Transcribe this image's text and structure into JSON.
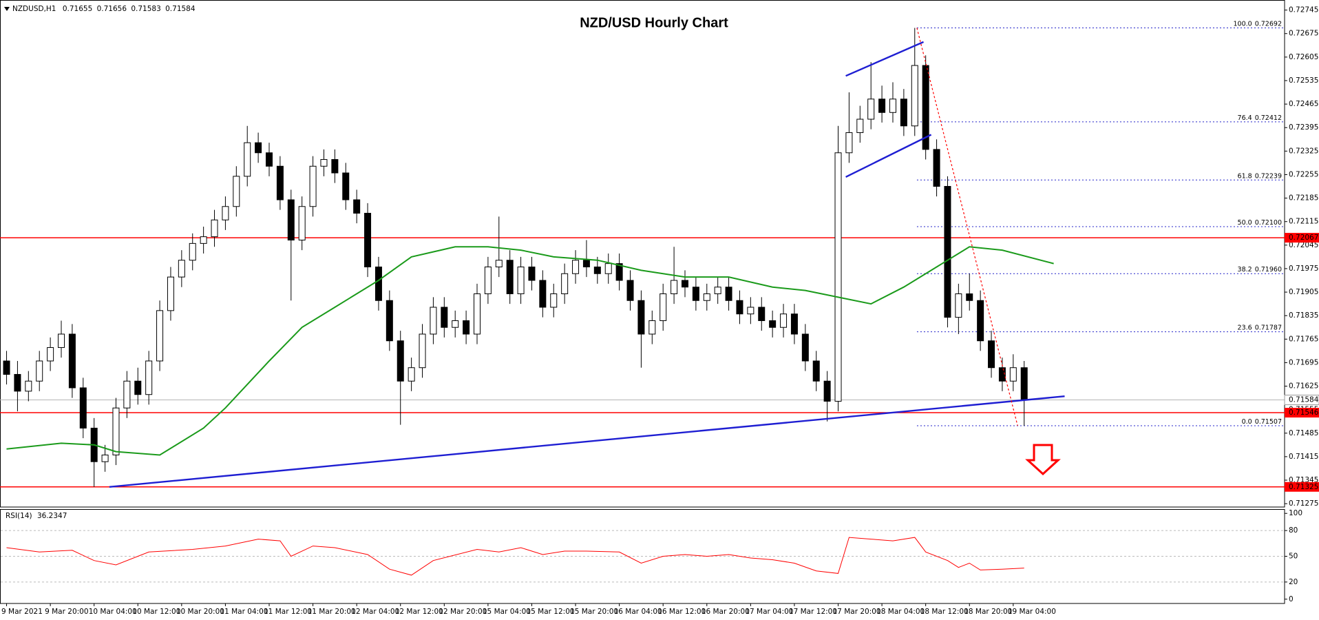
{
  "chart_data": {
    "type": "candlestick",
    "header": {
      "symbol": "NZDUSD,H1",
      "values": [
        0.71655,
        0.71656,
        0.71583,
        0.71584
      ]
    },
    "title": "NZD/USD Hourly Chart",
    "xlim": [
      -0.6,
      116.8
    ],
    "ylim": [
      0.71265,
      0.72775
    ],
    "yticks": [
      0.72745,
      0.72675,
      0.72605,
      0.72535,
      0.72465,
      0.72395,
      0.72325,
      0.72255,
      0.72185,
      0.72115,
      0.72045,
      0.71975,
      0.71905,
      0.71835,
      0.71765,
      0.71695,
      0.71625,
      0.71555,
      0.71485,
      0.71415,
      0.71345,
      0.71275
    ],
    "xticks": [
      {
        "value": 0,
        "label": "9 Mar 2021"
      },
      {
        "value": 4,
        "label": "9 Mar 20:00"
      },
      {
        "value": 8,
        "label": "10 Mar 04:00"
      },
      {
        "value": 12,
        "label": "10 Mar 12:00"
      },
      {
        "value": 16,
        "label": "10 Mar 20:00"
      },
      {
        "value": 20,
        "label": "11 Mar 04:00"
      },
      {
        "value": 24,
        "label": "11 Mar 12:00"
      },
      {
        "value": 28,
        "label": "11 Mar 20:00"
      },
      {
        "value": 32,
        "label": "12 Mar 04:00"
      },
      {
        "value": 36,
        "label": "12 Mar 12:00"
      },
      {
        "value": 40,
        "label": "12 Mar 20:00"
      },
      {
        "value": 44,
        "label": "15 Mar 04:00"
      },
      {
        "value": 48,
        "label": "15 Mar 12:00"
      },
      {
        "value": 52,
        "label": "15 Mar 20:00"
      },
      {
        "value": 56,
        "label": "16 Mar 04:00"
      },
      {
        "value": 60,
        "label": "16 Mar 12:00"
      },
      {
        "value": 64,
        "label": "16 Mar 20:00"
      },
      {
        "value": 68,
        "label": "17 Mar 04:00"
      },
      {
        "value": 72,
        "label": "17 Mar 12:00"
      },
      {
        "value": 76,
        "label": "17 Mar 20:00"
      },
      {
        "value": 80,
        "label": "18 Mar 04:00"
      },
      {
        "value": 84,
        "label": "18 Mar 12:00"
      },
      {
        "value": 88,
        "label": "18 Mar 20:00"
      },
      {
        "value": 92,
        "label": "19 Mar 04:00"
      }
    ],
    "colors": {
      "up": "#ffffff",
      "down": "#000000",
      "wick": "#000000"
    },
    "candles": {
      "open": [
        0.717,
        0.7166,
        0.7161,
        0.7164,
        0.717,
        0.7174,
        0.7178,
        0.7162,
        0.715,
        0.714,
        0.7142,
        0.7156,
        0.7164,
        0.716,
        0.717,
        0.7185,
        0.7195,
        0.72,
        0.7205,
        0.7207,
        0.7212,
        0.7216,
        0.7225,
        0.7235,
        0.7232,
        0.7228,
        0.7218,
        0.7206,
        0.7216,
        0.7228,
        0.723,
        0.7226,
        0.7218,
        0.7214,
        0.7198,
        0.7188,
        0.7176,
        0.7164,
        0.7168,
        0.7178,
        0.7186,
        0.718,
        0.7182,
        0.7178,
        0.719,
        0.7198,
        0.72,
        0.719,
        0.7198,
        0.7194,
        0.7186,
        0.719,
        0.7196,
        0.72,
        0.7198,
        0.7196,
        0.7199,
        0.7194,
        0.7188,
        0.7178,
        0.7182,
        0.719,
        0.7194,
        0.7192,
        0.7188,
        0.719,
        0.7192,
        0.7188,
        0.7184,
        0.7186,
        0.7182,
        0.718,
        0.7184,
        0.7178,
        0.717,
        0.7164,
        0.7158,
        0.7232,
        0.7238,
        0.7242,
        0.7248,
        0.7244,
        0.7248,
        0.724,
        0.7258,
        0.7233,
        0.7222,
        0.7183,
        0.719,
        0.7188,
        0.7176,
        0.7168,
        0.7164,
        0.7168
      ],
      "high": [
        0.7173,
        0.717,
        0.7167,
        0.7173,
        0.7177,
        0.7182,
        0.7181,
        0.7165,
        0.7153,
        0.7145,
        0.7159,
        0.7167,
        0.7168,
        0.7173,
        0.7188,
        0.7198,
        0.7203,
        0.7208,
        0.721,
        0.7215,
        0.7219,
        0.7228,
        0.724,
        0.7238,
        0.7235,
        0.7231,
        0.7221,
        0.7219,
        0.7231,
        0.7233,
        0.7233,
        0.7229,
        0.7221,
        0.7217,
        0.7201,
        0.7191,
        0.7179,
        0.7171,
        0.7181,
        0.7189,
        0.7189,
        0.7185,
        0.7185,
        0.7193,
        0.7201,
        0.7213,
        0.7203,
        0.7201,
        0.7201,
        0.7197,
        0.7193,
        0.7199,
        0.7203,
        0.7206,
        0.7201,
        0.7202,
        0.7202,
        0.7197,
        0.7191,
        0.7185,
        0.7193,
        0.7204,
        0.7197,
        0.7195,
        0.7193,
        0.7195,
        0.7195,
        0.7191,
        0.7189,
        0.7189,
        0.7185,
        0.7187,
        0.7187,
        0.7181,
        0.7173,
        0.7167,
        0.724,
        0.725,
        0.7246,
        0.7259,
        0.7252,
        0.7253,
        0.7251,
        0.72692,
        0.7261,
        0.7236,
        0.7225,
        0.7193,
        0.7196,
        0.7191,
        0.7179,
        0.7171,
        0.7172,
        0.717
      ],
      "low": [
        0.7163,
        0.7155,
        0.7158,
        0.7161,
        0.7167,
        0.7171,
        0.7159,
        0.7147,
        0.71325,
        0.7137,
        0.7139,
        0.7153,
        0.7157,
        0.7157,
        0.7167,
        0.7182,
        0.7192,
        0.7197,
        0.7202,
        0.7204,
        0.7209,
        0.7213,
        0.7222,
        0.7229,
        0.7225,
        0.7215,
        0.7188,
        0.7203,
        0.7213,
        0.7225,
        0.7223,
        0.7215,
        0.7211,
        0.7195,
        0.7185,
        0.7173,
        0.7151,
        0.7161,
        0.7165,
        0.7175,
        0.7177,
        0.7177,
        0.7175,
        0.7175,
        0.7187,
        0.7195,
        0.7187,
        0.7187,
        0.7191,
        0.7183,
        0.7183,
        0.7187,
        0.7193,
        0.7195,
        0.7193,
        0.7193,
        0.7191,
        0.7185,
        0.7168,
        0.7175,
        0.7179,
        0.7187,
        0.7189,
        0.7185,
        0.7185,
        0.7187,
        0.7185,
        0.7181,
        0.7181,
        0.7179,
        0.7177,
        0.7177,
        0.7175,
        0.7167,
        0.7161,
        0.7152,
        0.7155,
        0.7229,
        0.7235,
        0.7239,
        0.7241,
        0.7241,
        0.7237,
        0.7237,
        0.723,
        0.7219,
        0.718,
        0.7178,
        0.7185,
        0.7173,
        0.7165,
        0.7161,
        0.7161,
        0.71507
      ],
      "close": [
        0.7166,
        0.7161,
        0.7164,
        0.717,
        0.7174,
        0.7178,
        0.7162,
        0.715,
        0.714,
        0.7142,
        0.7156,
        0.7164,
        0.716,
        0.717,
        0.7185,
        0.7195,
        0.72,
        0.7205,
        0.7207,
        0.7212,
        0.7216,
        0.7225,
        0.7235,
        0.7232,
        0.7228,
        0.7218,
        0.7206,
        0.7216,
        0.7228,
        0.723,
        0.7226,
        0.7218,
        0.7214,
        0.7198,
        0.7188,
        0.7176,
        0.7164,
        0.7168,
        0.7178,
        0.7186,
        0.718,
        0.7182,
        0.7178,
        0.719,
        0.7198,
        0.72,
        0.719,
        0.7198,
        0.7194,
        0.7186,
        0.719,
        0.7196,
        0.72,
        0.7198,
        0.7196,
        0.7199,
        0.7194,
        0.7188,
        0.7178,
        0.7182,
        0.719,
        0.7194,
        0.7192,
        0.7188,
        0.719,
        0.7192,
        0.7188,
        0.7184,
        0.7186,
        0.7182,
        0.718,
        0.7184,
        0.7178,
        0.717,
        0.7164,
        0.7158,
        0.7232,
        0.7238,
        0.7242,
        0.7248,
        0.7244,
        0.7248,
        0.724,
        0.7258,
        0.7233,
        0.7222,
        0.7183,
        0.719,
        0.7188,
        0.7176,
        0.7168,
        0.7164,
        0.7168,
        0.71584
      ]
    },
    "levels": [
      {
        "value": 0.72067,
        "color": "#ff0000"
      },
      {
        "value": 0.71546,
        "color": "#ff0000"
      },
      {
        "value": 0.71325,
        "color": "#ff0000"
      }
    ],
    "current_price": 0.71584,
    "fibonacci": {
      "start_x": 83.2,
      "color": "#1f1fc8",
      "levels": [
        {
          "level": "100.0",
          "value": 0.72692,
          "label": "0.72692"
        },
        {
          "level": "76.4",
          "value": 0.72412,
          "label": "0.72412"
        },
        {
          "level": "61.8",
          "value": 0.72239,
          "label": "0.72239"
        },
        {
          "level": "50.0",
          "value": 0.721,
          "label": "0.72100"
        },
        {
          "level": "38.2",
          "value": 0.7196,
          "label": "0.71960"
        },
        {
          "level": "23.6",
          "value": 0.71787,
          "label": "0.71787"
        },
        {
          "level": "0.0",
          "value": 0.71507,
          "label": "0.71507"
        }
      ]
    },
    "moving_average": {
      "color": "#1a9a1a",
      "x": [
        0,
        5,
        8,
        10,
        14,
        18,
        20,
        24,
        27,
        30,
        34,
        37,
        41,
        44,
        47,
        50,
        54,
        58,
        62,
        66,
        70,
        73,
        76,
        79,
        82,
        85,
        88,
        91,
        95.7
      ],
      "values": [
        0.71438,
        0.71455,
        0.7145,
        0.7143,
        0.7142,
        0.715,
        0.7156,
        0.717,
        0.718,
        0.7186,
        0.7194,
        0.7201,
        0.7204,
        0.7204,
        0.7203,
        0.7201,
        0.72,
        0.7197,
        0.7195,
        0.7195,
        0.7192,
        0.7191,
        0.7189,
        0.7187,
        0.7192,
        0.7198,
        0.7204,
        0.7203,
        0.7199
      ]
    },
    "trendlines": [
      {
        "color": "#1e1ed2",
        "dash": false,
        "x": [
          9.4,
          96.7
        ],
        "values": [
          0.71325,
          0.71595
        ]
      },
      {
        "color": "#1e1ed2",
        "dash": false,
        "x": [
          76.7,
          83.8
        ],
        "values": [
          0.72549,
          0.7265
        ]
      },
      {
        "color": "#1e1ed2",
        "dash": false,
        "x": [
          76.7,
          84.5
        ],
        "values": [
          0.72248,
          0.72374
        ]
      },
      {
        "color": "#ff0000",
        "dash": true,
        "x": [
          83.2,
          92.4
        ],
        "values": [
          0.72692,
          0.71507
        ]
      }
    ],
    "rsi": {
      "name": "RSI(14)",
      "current": 36.2347,
      "color": "#ff0000",
      "ylim": [
        -5,
        105
      ],
      "yticks": [
        100,
        80,
        50,
        20,
        0
      ],
      "levels": [
        80,
        50,
        20
      ],
      "x": [
        0,
        3,
        6,
        8,
        10,
        13,
        17,
        20,
        23,
        25,
        26,
        28,
        30,
        33,
        35,
        37,
        39,
        43,
        45,
        47,
        49,
        51,
        53,
        56,
        58,
        60,
        62,
        64,
        66,
        68,
        70,
        72,
        74,
        76,
        77,
        79,
        81,
        83,
        84,
        86,
        87,
        88,
        89,
        91,
        93
      ],
      "values": [
        60,
        55,
        57,
        45,
        40,
        55,
        58,
        62,
        70,
        68,
        50,
        62,
        60,
        52,
        35,
        28,
        45,
        58,
        55,
        60,
        52,
        56,
        56,
        55,
        42,
        50,
        52,
        50,
        52,
        48,
        46,
        42,
        33,
        30,
        72,
        70,
        68,
        72,
        55,
        45,
        37,
        42,
        34,
        35,
        36.2347
      ]
    }
  }
}
